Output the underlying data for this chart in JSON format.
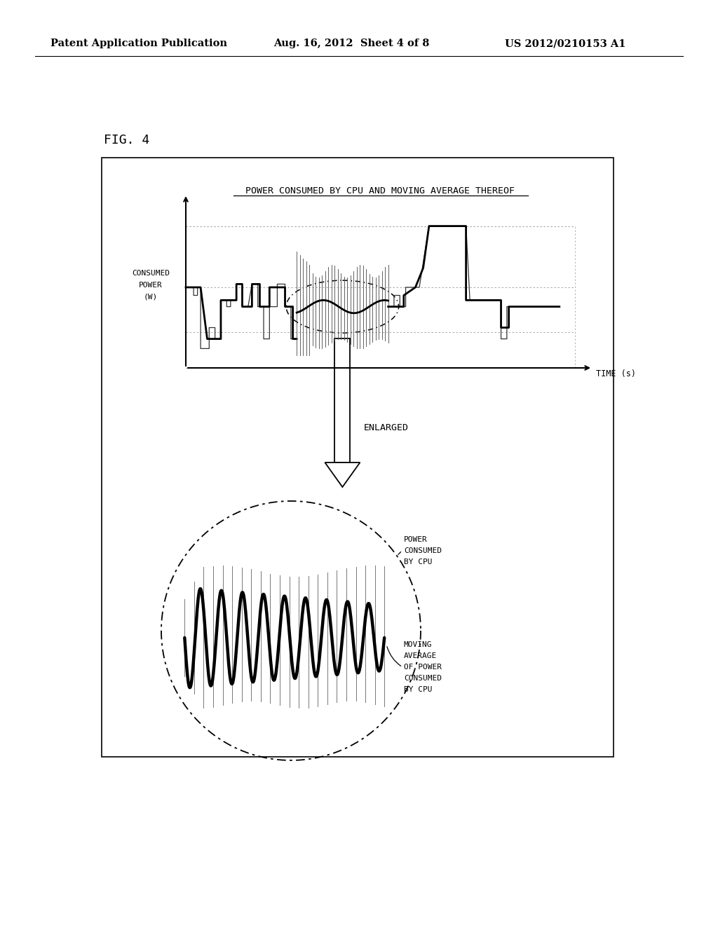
{
  "title": "POWER CONSUMED BY CPU AND MOVING AVERAGE THEREOF",
  "fig_label": "FIG. 4",
  "header_left": "Patent Application Publication",
  "header_mid": "Aug. 16, 2012  Sheet 4 of 8",
  "header_right": "US 2012/0210153 A1",
  "xlabel": "TIME (s)",
  "ylabel_lines": [
    "CONSUMED",
    "POWER",
    "(W)"
  ],
  "enlarged_label": "ENLARGED",
  "label1": [
    "POWER",
    "CONSUMED",
    "BY CPU"
  ],
  "label2": [
    "MOVING",
    "AVERAGE",
    "OF POWER",
    "CONSUMED",
    "BY CPU"
  ],
  "bg_color": "#ffffff",
  "line_color": "#000000"
}
